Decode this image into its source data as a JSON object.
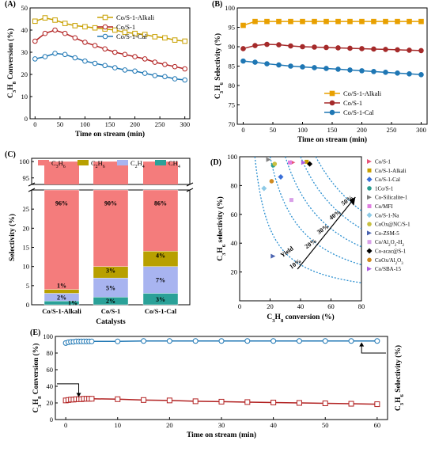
{
  "panels": [
    {
      "id": "A",
      "label": "(A)",
      "type": "line",
      "xlabel": "Time on stream (min)",
      "ylabel": "C3H8 Conversion (%)",
      "xlim": [
        -10,
        310
      ],
      "ylim": [
        0,
        50
      ],
      "xticks": [
        0,
        50,
        100,
        150,
        200,
        250,
        300
      ],
      "yticks": [
        0,
        10,
        20,
        30,
        40,
        50
      ],
      "legend_position": "top-right",
      "series": [
        {
          "name": "Co/S-1-Alkali",
          "color": "#c8a000",
          "marker": "square-open",
          "x": [
            0,
            20,
            40,
            60,
            80,
            100,
            120,
            140,
            160,
            180,
            200,
            220,
            240,
            260,
            280,
            300
          ],
          "y": [
            44,
            45.5,
            44.5,
            43,
            42,
            41.5,
            41,
            40.5,
            40,
            39,
            38.5,
            38,
            37,
            36.5,
            35.5,
            35
          ]
        },
        {
          "name": "Co/S-1",
          "color": "#b22222",
          "marker": "circle-open",
          "x": [
            0,
            20,
            40,
            60,
            80,
            100,
            120,
            140,
            160,
            180,
            200,
            220,
            240,
            260,
            280,
            300
          ],
          "y": [
            35,
            38.5,
            40,
            38.5,
            36.5,
            34.5,
            33,
            31.5,
            30,
            29,
            28,
            27,
            25.5,
            24.5,
            23.5,
            22.5
          ]
        },
        {
          "name": "Co/S-1-Cal",
          "color": "#1f77b4",
          "marker": "circle-open",
          "x": [
            0,
            20,
            40,
            60,
            80,
            100,
            120,
            140,
            160,
            180,
            200,
            220,
            240,
            260,
            280,
            300
          ],
          "y": [
            27,
            28,
            29.5,
            29,
            27.5,
            26,
            25,
            24,
            23,
            22,
            21.5,
            20.5,
            19.5,
            19,
            18,
            17.5
          ]
        }
      ]
    },
    {
      "id": "B",
      "label": "(B)",
      "type": "line",
      "xlabel": "Time on stream (min)",
      "ylabel": "C3H6 Selectivity (%)",
      "xlim": [
        -10,
        310
      ],
      "ylim": [
        70,
        100
      ],
      "xticks": [
        0,
        50,
        100,
        150,
        200,
        250,
        300
      ],
      "yticks": [
        70,
        75,
        80,
        85,
        90,
        95,
        100
      ],
      "legend_position": "bottom-right",
      "series": [
        {
          "name": "Co/S-1-Alkali",
          "color": "#e8a000",
          "marker": "square-filled",
          "x": [
            0,
            20,
            40,
            60,
            80,
            100,
            120,
            140,
            160,
            180,
            200,
            220,
            240,
            260,
            280,
            300
          ],
          "y": [
            95.5,
            96.5,
            96.5,
            96.5,
            96.5,
            96.5,
            96.5,
            96.5,
            96.5,
            96.5,
            96.5,
            96.5,
            96.5,
            96.5,
            96.5,
            96.5
          ]
        },
        {
          "name": "Co/S-1",
          "color": "#a52a2a",
          "marker": "circle-filled",
          "x": [
            0,
            20,
            40,
            60,
            80,
            100,
            120,
            140,
            160,
            180,
            200,
            220,
            240,
            260,
            280,
            300
          ],
          "y": [
            89.5,
            90.3,
            90.6,
            90.5,
            90.2,
            90,
            89.9,
            89.8,
            89.7,
            89.6,
            89.5,
            89.4,
            89.3,
            89.2,
            89.1,
            89
          ]
        },
        {
          "name": "Co/S-1-Cal",
          "color": "#1f77b4",
          "marker": "circle-filled",
          "x": [
            0,
            20,
            40,
            60,
            80,
            100,
            120,
            140,
            160,
            180,
            200,
            220,
            240,
            260,
            280,
            300
          ],
          "y": [
            86.3,
            86,
            85.6,
            85.3,
            85,
            84.8,
            84.6,
            84.4,
            84.2,
            84,
            83.8,
            83.6,
            83.4,
            83.2,
            83,
            82.8
          ]
        }
      ]
    },
    {
      "id": "C",
      "label": "(C)",
      "type": "bar",
      "xlabel": "Catalysts",
      "ylabel": "Selectivity (%)",
      "categories": [
        "Co/S-1-Alkali",
        "Co/S-1",
        "Co/S-1-Cal"
      ],
      "legend": [
        "C3H6",
        "C2H6",
        "C2H4",
        "CH4"
      ],
      "colors": [
        "#f47c7c",
        "#b8a000",
        "#a8b4f0",
        "#2aa198"
      ],
      "series": [
        {
          "name": "C3H6",
          "values": [
            96,
            90,
            86
          ]
        },
        {
          "name": "C2H6",
          "values": [
            1,
            3,
            4
          ]
        },
        {
          "name": "C2H4",
          "values": [
            2,
            5,
            7
          ]
        },
        {
          "name": "CH4",
          "values": [
            1,
            2,
            3
          ]
        }
      ],
      "bar_labels": [
        [
          "96%",
          "1%",
          "2%",
          "1%"
        ],
        [
          "90%",
          "3%",
          "5%",
          "2%"
        ],
        [
          "86%",
          "4%",
          "7%",
          "3%"
        ]
      ],
      "yticks_lower": [
        0,
        5,
        10,
        15,
        20,
        25
      ],
      "yticks_upper": [
        95,
        100
      ]
    },
    {
      "id": "D",
      "label": "(D)",
      "type": "scatter",
      "xlabel": "C3H8 conversion (%)",
      "ylabel": "C3H6 selectivity (%)",
      "xlim": [
        0,
        80
      ],
      "ylim": [
        0,
        100
      ],
      "xticks": [
        0,
        20,
        40,
        60,
        80
      ],
      "yticks": [
        20,
        40,
        60,
        80,
        100
      ],
      "yield_labels": [
        "10%",
        "20%",
        "30%",
        "40%",
        "50%"
      ],
      "yield_values": [
        10,
        20,
        30,
        40,
        50
      ],
      "arrow_label": "Yield",
      "points": [
        {
          "name": "Co/S-1",
          "x": 35,
          "y": 96,
          "color": "#e8557a"
        },
        {
          "name": "Co/S-1-Alkali",
          "x": 44,
          "y": 96.5,
          "color": "#c8a000"
        },
        {
          "name": "Co/S-1-Cal",
          "x": 27,
          "y": 86,
          "color": "#3a6fd8"
        },
        {
          "name": "1Co/S-1",
          "x": 22,
          "y": 94,
          "color": "#2a9d8f"
        },
        {
          "name": "Co-Silicalite-1",
          "x": 19,
          "y": 98,
          "color": "#7f7f7f"
        },
        {
          "name": "Co/MFI",
          "x": 33,
          "y": 96,
          "color": "#e07fe0"
        },
        {
          "name": "Co/S-1-Na",
          "x": 16,
          "y": 78,
          "color": "#8ecae6"
        },
        {
          "name": "CoOx@NC/S-1",
          "x": 23,
          "y": 95,
          "color": "#c8c040"
        },
        {
          "name": "Co-ZSM-5",
          "x": 22,
          "y": 31,
          "color": "#4a63b0"
        },
        {
          "name": "Co/Al2O3-H2",
          "x": 34,
          "y": 70,
          "color": "#d9a0e8"
        },
        {
          "name": "Co-acac@S-1",
          "x": 46,
          "y": 95,
          "color": "#000000"
        },
        {
          "name": "CoOx/Al2O3",
          "x": 21,
          "y": 83,
          "color": "#d08a20"
        },
        {
          "name": "Co/SBA-15",
          "x": 42,
          "y": 96,
          "color": "#b060e0"
        }
      ]
    },
    {
      "id": "E",
      "label": "(E)",
      "type": "line",
      "xlabel": "Time on stream (min)",
      "ylabel": "C3H8 Conversion (%)",
      "ylabel_right": "C3H6 Selectivity (%)",
      "xlim": [
        -2,
        62
      ],
      "ylim": [
        0,
        100
      ],
      "xticks": [
        0,
        10,
        20,
        30,
        40,
        50,
        60
      ],
      "yticks": [
        0,
        20,
        40,
        60,
        80,
        100
      ],
      "series": [
        {
          "name": "C3H6 selectivity",
          "color": "#1f77b4",
          "marker": "circle-open",
          "x": [
            0,
            0.5,
            1,
            1.5,
            2,
            2.5,
            3,
            3.5,
            4,
            4.5,
            5,
            10,
            15,
            20,
            25,
            30,
            35,
            40,
            45,
            50,
            55,
            60
          ],
          "y": [
            92,
            93,
            93.5,
            93.5,
            94,
            94,
            94,
            94,
            94,
            94,
            94,
            94,
            94.5,
            94.5,
            94.5,
            94.5,
            94.5,
            94.5,
            94.5,
            94.5,
            94.5,
            94.5
          ]
        },
        {
          "name": "C3H8 conversion",
          "color": "#b22222",
          "marker": "square-open",
          "x": [
            0,
            0.5,
            1,
            1.5,
            2,
            2.5,
            3,
            3.5,
            4,
            4.5,
            5,
            10,
            15,
            20,
            25,
            30,
            35,
            40,
            45,
            50,
            55,
            60
          ],
          "y": [
            23,
            23.5,
            24,
            24,
            24.5,
            24.5,
            24.5,
            25,
            25,
            25,
            25,
            24.5,
            23.5,
            23,
            22,
            21.5,
            21,
            20.5,
            20,
            19.5,
            19,
            18.5
          ]
        }
      ]
    }
  ],
  "chart_data": [
    {
      "type": "line",
      "title": "(A)",
      "xlabel": "Time on stream (min)",
      "ylabel": "C3H8 Conversion (%)",
      "x": [
        0,
        20,
        40,
        60,
        80,
        100,
        120,
        140,
        160,
        180,
        200,
        220,
        240,
        260,
        280,
        300
      ],
      "series": [
        {
          "name": "Co/S-1-Alkali",
          "values": [
            44,
            45.5,
            44.5,
            43,
            42,
            41.5,
            41,
            40.5,
            40,
            39,
            38.5,
            38,
            37,
            36.5,
            35.5,
            35
          ]
        },
        {
          "name": "Co/S-1",
          "values": [
            35,
            38.5,
            40,
            38.5,
            36.5,
            34.5,
            33,
            31.5,
            30,
            29,
            28,
            27,
            25.5,
            24.5,
            23.5,
            22.5
          ]
        },
        {
          "name": "Co/S-1-Cal",
          "values": [
            27,
            28,
            29.5,
            29,
            27.5,
            26,
            25,
            24,
            23,
            22,
            21.5,
            20.5,
            19.5,
            19,
            18,
            17.5
          ]
        }
      ],
      "ylim": [
        0,
        50
      ]
    },
    {
      "type": "line",
      "title": "(B)",
      "xlabel": "Time on stream (min)",
      "ylabel": "C3H6 Selectivity (%)",
      "x": [
        0,
        20,
        40,
        60,
        80,
        100,
        120,
        140,
        160,
        180,
        200,
        220,
        240,
        260,
        280,
        300
      ],
      "series": [
        {
          "name": "Co/S-1-Alkali",
          "values": [
            95.5,
            96.5,
            96.5,
            96.5,
            96.5,
            96.5,
            96.5,
            96.5,
            96.5,
            96.5,
            96.5,
            96.5,
            96.5,
            96.5,
            96.5,
            96.5
          ]
        },
        {
          "name": "Co/S-1",
          "values": [
            89.5,
            90.3,
            90.6,
            90.5,
            90.2,
            90,
            89.9,
            89.8,
            89.7,
            89.6,
            89.5,
            89.4,
            89.3,
            89.2,
            89.1,
            89
          ]
        },
        {
          "name": "Co/S-1-Cal",
          "values": [
            86.3,
            86,
            85.6,
            85.3,
            85,
            84.8,
            84.6,
            84.4,
            84.2,
            84,
            83.8,
            83.6,
            83.4,
            83.2,
            83,
            82.8
          ]
        }
      ],
      "ylim": [
        70,
        100
      ]
    },
    {
      "type": "bar",
      "title": "(C)",
      "xlabel": "Catalysts",
      "ylabel": "Selectivity (%)",
      "categories": [
        "Co/S-1-Alkali",
        "Co/S-1",
        "Co/S-1-Cal"
      ],
      "series": [
        {
          "name": "C3H6",
          "values": [
            96,
            90,
            86
          ]
        },
        {
          "name": "C2H6",
          "values": [
            1,
            3,
            4
          ]
        },
        {
          "name": "C2H4",
          "values": [
            2,
            5,
            7
          ]
        },
        {
          "name": "CH4",
          "values": [
            1,
            2,
            3
          ]
        }
      ]
    },
    {
      "type": "scatter",
      "title": "(D)",
      "xlabel": "C3H8 conversion (%)",
      "ylabel": "C3H6 selectivity (%)",
      "xlim": [
        0,
        80
      ],
      "ylim": [
        0,
        100
      ]
    },
    {
      "type": "line",
      "title": "(E)",
      "xlabel": "Time on stream (min)",
      "ylabel": "C3H8 Conversion (%)",
      "ylim": [
        0,
        100
      ]
    }
  ]
}
